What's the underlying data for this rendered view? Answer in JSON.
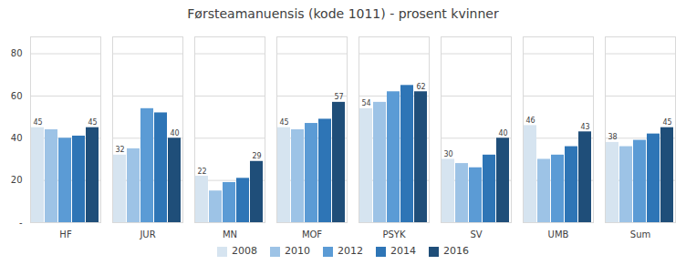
{
  "chart_data": {
    "type": "bar",
    "title": "Førsteamanuensis (kode 1011) - prosent kvinner",
    "categories": [
      "HF",
      "JUR",
      "MN",
      "MOF",
      "PSYK",
      "SV",
      "UMB",
      "Sum"
    ],
    "series": [
      {
        "name": "2008",
        "color": "#d6e4f0",
        "values": [
          45,
          32,
          22,
          45,
          54,
          30,
          46,
          38
        ],
        "data_labels": true
      },
      {
        "name": "2010",
        "color": "#9dc3e6",
        "values": [
          44,
          35,
          15,
          44,
          57,
          28,
          30,
          36
        ]
      },
      {
        "name": "2012",
        "color": "#5b9bd5",
        "values": [
          40,
          54,
          19,
          47,
          62,
          26,
          32,
          39
        ]
      },
      {
        "name": "2014",
        "color": "#2e75b6",
        "values": [
          41,
          52,
          21,
          49,
          65,
          32,
          36,
          42
        ]
      },
      {
        "name": "2016",
        "color": "#1f4e79",
        "values": [
          45,
          40,
          29,
          57,
          62,
          40,
          43,
          45
        ],
        "data_labels": true
      }
    ],
    "ylim": [
      0,
      88
    ],
    "yticks": [
      {
        "value": 0,
        "label": "-"
      },
      20,
      40,
      60,
      80
    ],
    "grid": true,
    "legend": "bottom"
  }
}
